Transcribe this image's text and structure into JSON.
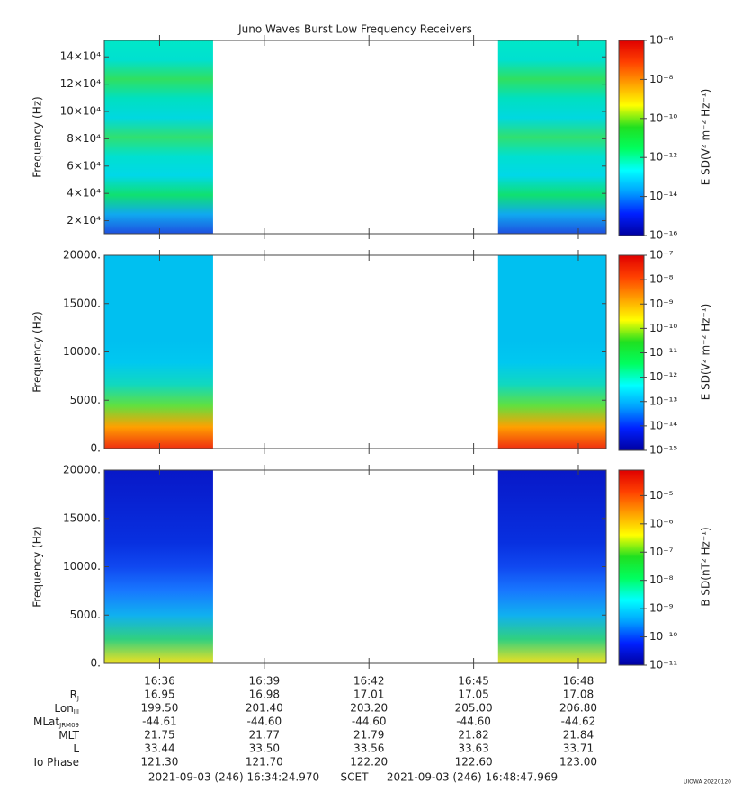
{
  "title": "Juno Waves Burst Low Frequency Receivers",
  "time_axis": {
    "xlim": [
      59664.97,
      60527.969
    ],
    "xticks": [
      {
        "value": 59760,
        "label": "16:36"
      },
      {
        "value": 59940,
        "label": "16:39"
      },
      {
        "value": 60120,
        "label": "16:42"
      },
      {
        "value": 60300,
        "label": "16:45"
      },
      {
        "value": 60480,
        "label": "16:48"
      }
    ],
    "data_spans": [
      [
        59664.97,
        59852
      ],
      [
        60342,
        60527.969
      ]
    ]
  },
  "chart_data": [
    {
      "type": "spectrogram",
      "ylabel": "Frequency (Hz)",
      "ylim": [
        10500,
        152000
      ],
      "yticks": [
        {
          "value": 20000,
          "label": "2×10⁴"
        },
        {
          "value": 40000,
          "label": "4×10⁴"
        },
        {
          "value": 60000,
          "label": "6×10⁴"
        },
        {
          "value": 80000,
          "label": "8×10⁴"
        },
        {
          "value": 100000,
          "label": "10×10⁴"
        },
        {
          "value": 120000,
          "label": "12×10⁴"
        },
        {
          "value": 140000,
          "label": "14×10⁴"
        }
      ],
      "fill_colors": [
        "#1e50e0",
        "#10a8f0",
        "#10e070",
        "#00d8e8",
        "#00e0d0",
        "#30e070",
        "#00d8e0",
        "#00e0c0",
        "#30e060",
        "#00e0d0",
        "#00e8c8"
      ],
      "colorbar": {
        "label": "E SD(V² m⁻² Hz⁻¹)",
        "log": true,
        "lim": [
          1e-16,
          1e-06
        ],
        "ticks": [
          {
            "value": 1e-16,
            "label": "10⁻¹⁶"
          },
          {
            "value": 1e-14,
            "label": "10⁻¹⁴"
          },
          {
            "value": 1e-12,
            "label": "10⁻¹²"
          },
          {
            "value": 1e-10,
            "label": "10⁻¹⁰"
          },
          {
            "value": 1e-08,
            "label": "10⁻⁸"
          },
          {
            "value": 1e-06,
            "label": "10⁻⁶"
          }
        ]
      }
    },
    {
      "type": "spectrogram",
      "ylabel": "Frequency (Hz)",
      "ylim": [
        0,
        20000
      ],
      "yticks": [
        {
          "value": 0,
          "label": "0."
        },
        {
          "value": 5000,
          "label": "5000."
        },
        {
          "value": 10000,
          "label": "10000."
        },
        {
          "value": 15000,
          "label": "15000."
        },
        {
          "value": 20000,
          "label": "20000."
        }
      ],
      "fill_colors": [
        "#f03010",
        "#ffa000",
        "#60e040",
        "#10d8c0",
        "#00c8f0",
        "#00c0f0",
        "#00c0f0",
        "#00c0f0",
        "#00c0f0",
        "#00c0f0"
      ],
      "colorbar": {
        "label": "E SD(V² m⁻² Hz⁻¹)",
        "log": true,
        "lim": [
          1e-15,
          1e-07
        ],
        "ticks": [
          {
            "value": 1e-15,
            "label": "10⁻¹⁵"
          },
          {
            "value": 1e-14,
            "label": "10⁻¹⁴"
          },
          {
            "value": 1e-13,
            "label": "10⁻¹³"
          },
          {
            "value": 1e-12,
            "label": "10⁻¹²"
          },
          {
            "value": 1e-11,
            "label": "10⁻¹¹"
          },
          {
            "value": 1e-10,
            "label": "10⁻¹⁰"
          },
          {
            "value": 1e-09,
            "label": "10⁻⁹"
          },
          {
            "value": 1e-08,
            "label": "10⁻⁸"
          },
          {
            "value": 1e-07,
            "label": "10⁻⁷"
          }
        ]
      }
    },
    {
      "type": "spectrogram",
      "ylabel": "Frequency (Hz)",
      "ylim": [
        0,
        20000
      ],
      "yticks": [
        {
          "value": 0,
          "label": "0."
        },
        {
          "value": 5000,
          "label": "5000."
        },
        {
          "value": 10000,
          "label": "10000."
        },
        {
          "value": 15000,
          "label": "15000."
        },
        {
          "value": 20000,
          "label": "20000."
        }
      ],
      "fill_colors": [
        "#f0e020",
        "#30d080",
        "#10b0f0",
        "#1878ff",
        "#1048f0",
        "#0830e0",
        "#0828d8",
        "#0820d0",
        "#0818c8"
      ],
      "colorbar": {
        "label": "B SD(nT² Hz⁻¹)",
        "log": true,
        "lim": [
          1e-11,
          8e-05
        ],
        "ticks": [
          {
            "value": 1e-11,
            "label": "10⁻¹¹"
          },
          {
            "value": 1e-10,
            "label": "10⁻¹⁰"
          },
          {
            "value": 1e-09,
            "label": "10⁻⁹"
          },
          {
            "value": 1e-08,
            "label": "10⁻⁸"
          },
          {
            "value": 1e-07,
            "label": "10⁻⁷"
          },
          {
            "value": 1e-06,
            "label": "10⁻⁶"
          },
          {
            "value": 1e-05,
            "label": "10⁻⁵"
          }
        ]
      }
    }
  ],
  "colormap": [
    "#0000a0",
    "#0020ff",
    "#00a0ff",
    "#00ffff",
    "#00ff60",
    "#20e020",
    "#ffff00",
    "#ffa000",
    "#ff4000",
    "#e00000"
  ],
  "ephemeris": [
    {
      "label": "R",
      "sub": "J",
      "values": [
        "16.95",
        "16.98",
        "17.01",
        "17.05",
        "17.08"
      ]
    },
    {
      "label": "Lon",
      "sub": "III",
      "values": [
        "199.50",
        "201.40",
        "203.20",
        "205.00",
        "206.80"
      ]
    },
    {
      "label": "MLat",
      "sub": "JRM09",
      "values": [
        "-44.61",
        "-44.60",
        "-44.60",
        "-44.60",
        "-44.62"
      ]
    },
    {
      "label": "MLT",
      "values": [
        "21.75",
        "21.77",
        "21.79",
        "21.82",
        "21.84"
      ]
    },
    {
      "label": "L",
      "values": [
        "33.44",
        "33.50",
        "33.56",
        "33.63",
        "33.71"
      ]
    },
    {
      "label": "Io Phase",
      "values": [
        "121.30",
        "121.70",
        "122.20",
        "122.60",
        "123.00"
      ]
    }
  ],
  "footer": {
    "start": "2021-09-03 (246) 16:34:24.970",
    "scet": "SCET",
    "end": "2021-09-03 (246) 16:48:47.969",
    "stamp": "UIOWA 20220120"
  }
}
